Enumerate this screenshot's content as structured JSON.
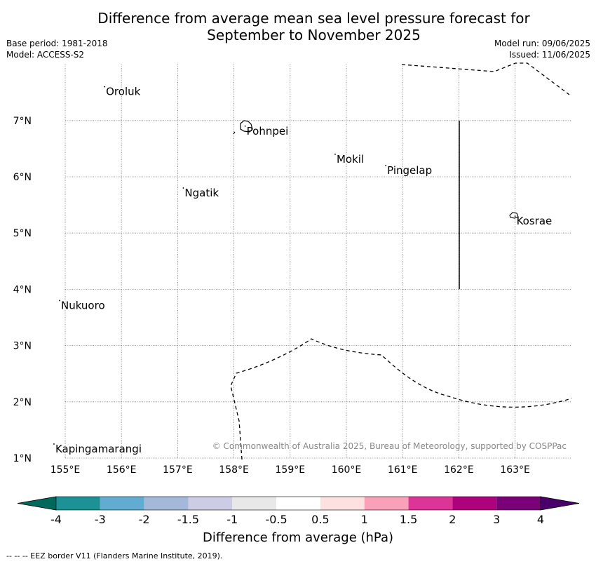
{
  "title": {
    "line1": "Difference from average mean sea level pressure forecast for",
    "line2": "September to November 2025"
  },
  "meta": {
    "base_period": "Base period: 1981-2018",
    "model": "Model: ACCESS-S2",
    "model_run": "Model run: 09/06/2025",
    "issued": "Issued: 11/06/2025"
  },
  "map": {
    "lon_range": [
      154.5,
      164.0
    ],
    "lat_range": [
      1.0,
      8.0
    ],
    "lon_ticks": [
      "155°E",
      "156°E",
      "157°E",
      "158°E",
      "159°E",
      "160°E",
      "161°E",
      "162°E",
      "163°E"
    ],
    "lat_ticks": [
      "1°N",
      "2°N",
      "3°N",
      "4°N",
      "5°N",
      "6°N",
      "7°N"
    ],
    "islands": [
      {
        "name": "Oroluk",
        "lon": 155.7,
        "lat": 7.6
      },
      {
        "name": "Pohnpei",
        "lon": 158.2,
        "lat": 6.9
      },
      {
        "name": "Mokil",
        "lon": 159.8,
        "lat": 6.4
      },
      {
        "name": "Pingelap",
        "lon": 160.7,
        "lat": 6.2
      },
      {
        "name": "Ngatik",
        "lon": 157.1,
        "lat": 5.8
      },
      {
        "name": "Kosrae",
        "lon": 163.0,
        "lat": 5.3
      },
      {
        "name": "Nukuoro",
        "lon": 154.9,
        "lat": 3.8
      },
      {
        "name": "Kapingamarangi",
        "lon": 154.8,
        "lat": 1.25
      }
    ],
    "copyright": "© Commonwealth of Australia 2025, Bureau of Meteorology, supported by COSPPac"
  },
  "colorbar": {
    "title": "Difference from average (hPa)",
    "labels": [
      "-4",
      "-3",
      "-2",
      "-1.5",
      "-1",
      "-0.5",
      "0.5",
      "1",
      "1.5",
      "2",
      "3",
      "4"
    ],
    "colors": [
      "#1c9297",
      "#62abd1",
      "#a4b9da",
      "#cccce4",
      "#e8e8e8",
      "#ffffff",
      "#fde0e0",
      "#f9a1b8",
      "#dd3497",
      "#ae017e",
      "#7a0177"
    ],
    "extend_low": "#00695c",
    "extend_high": "#49006a"
  },
  "footer": "--  --  -- EEZ border V11 (Flanders Marine Institute, 2019)."
}
